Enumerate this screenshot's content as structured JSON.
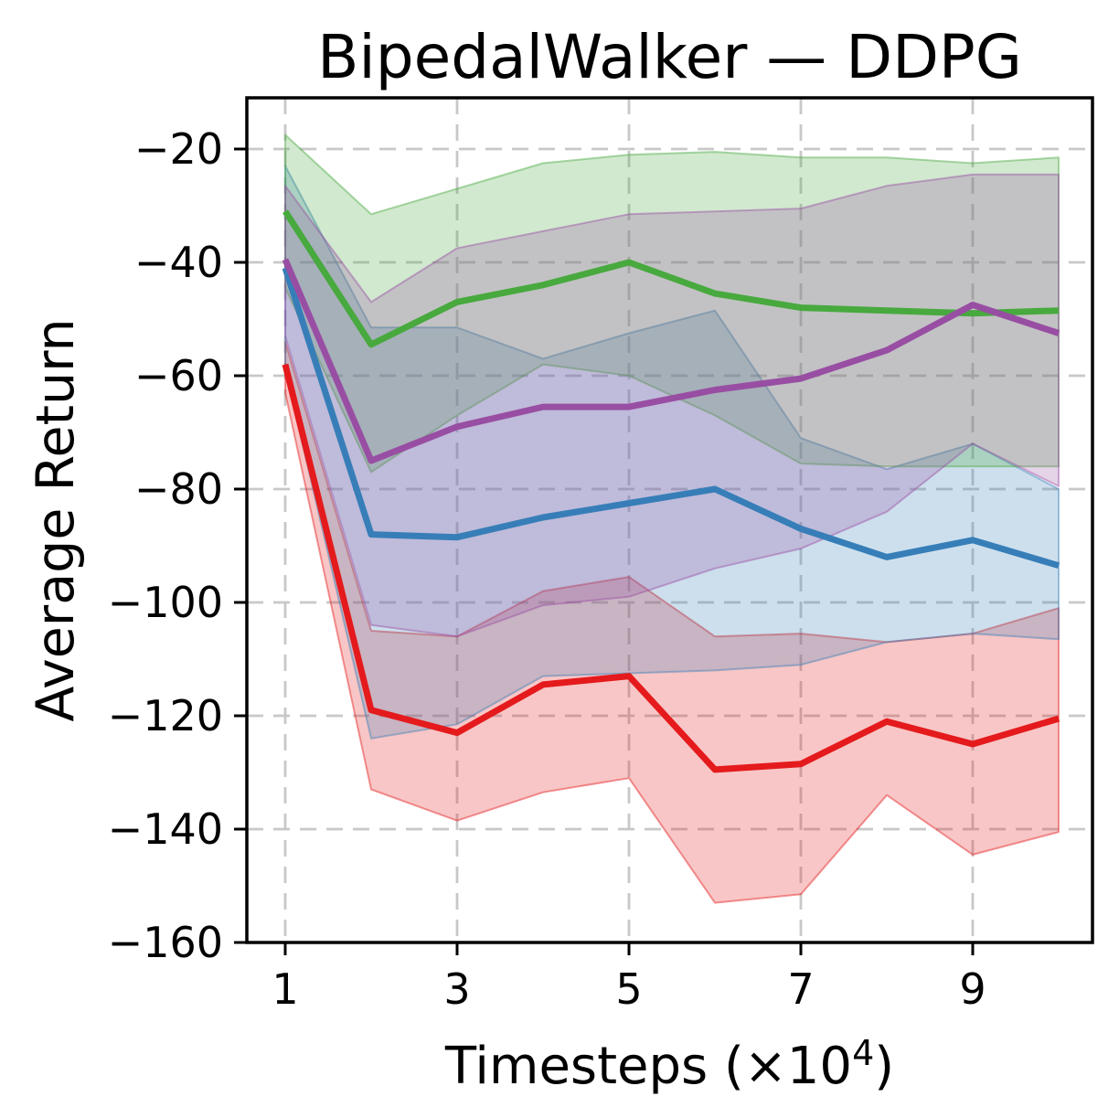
{
  "page": {
    "background": "#ffffff"
  },
  "chart_data": {
    "type": "line",
    "title": "BipedalWalker — DDPG",
    "xlabel": {
      "pre": "Timesteps (×10",
      "sup": "4",
      "post": ")"
    },
    "ylabel": "Average Return",
    "x": [
      1,
      2,
      3,
      4,
      5,
      6,
      7,
      8,
      9,
      10
    ],
    "xticks": [
      1,
      3,
      5,
      7,
      9
    ],
    "yticks": [
      -20,
      -40,
      -60,
      -80,
      -100,
      -120,
      -140,
      -160
    ],
    "xlim": [
      0.55,
      10.4
    ],
    "ylim": [
      -160.2,
      -10.9
    ],
    "grid": true,
    "grid_color": "#c8c8c8",
    "band_alpha": 0.25,
    "band_edge_alpha": 0.45,
    "line_width": 7,
    "series": [
      {
        "name": "red",
        "color": "#e41a1c",
        "mean": [
          -58,
          -119,
          -123,
          -114.5,
          -113,
          -129.5,
          -128.5,
          -121,
          -125,
          -120.5
        ],
        "upper": [
          -54,
          -105,
          -106,
          -98,
          -95.5,
          -106,
          -105.5,
          -107,
          -105.5,
          -101
        ],
        "lower": [
          -63,
          -133,
          -138.5,
          -133.5,
          -131,
          -153,
          -151.5,
          -134,
          -144.5,
          -140.5
        ]
      },
      {
        "name": "blue",
        "color": "#377eb8",
        "mean": [
          -41,
          -88,
          -88.5,
          -85,
          -82.5,
          -80,
          -87,
          -92,
          -89,
          -93.5
        ],
        "upper": [
          -23,
          -51.5,
          -51.5,
          -57,
          -52.5,
          -48.5,
          -71,
          -76.5,
          -72,
          -80
        ],
        "lower": [
          -59,
          -124,
          -121.5,
          -113,
          -112.5,
          -112,
          -111,
          -107,
          -105.5,
          -106.5
        ]
      },
      {
        "name": "green",
        "color": "#48a93e",
        "mean": [
          -31,
          -54.5,
          -47,
          -44,
          -40,
          -45.5,
          -48,
          -48.5,
          -49,
          -48.5
        ],
        "upper": [
          -17.5,
          -31.5,
          -27,
          -22.5,
          -21,
          -20.5,
          -21.5,
          -21.5,
          -22.5,
          -21.5
        ],
        "lower": [
          -44.5,
          -77,
          -67,
          -58,
          -60,
          -67,
          -75.5,
          -76,
          -76,
          -76
        ]
      },
      {
        "name": "purple",
        "color": "#984ea3",
        "mean": [
          -39.5,
          -75,
          -69,
          -65.5,
          -65.5,
          -62.5,
          -60.5,
          -55.5,
          -47.5,
          -52.5
        ],
        "upper": [
          -26.5,
          -47,
          -37.5,
          -34.5,
          -31.5,
          -31,
          -30.5,
          -26.5,
          -24.5,
          -24.5
        ],
        "lower": [
          -53,
          -104,
          -106,
          -100.5,
          -99,
          -94,
          -90.5,
          -84,
          -72,
          -79.5
        ]
      }
    ]
  }
}
